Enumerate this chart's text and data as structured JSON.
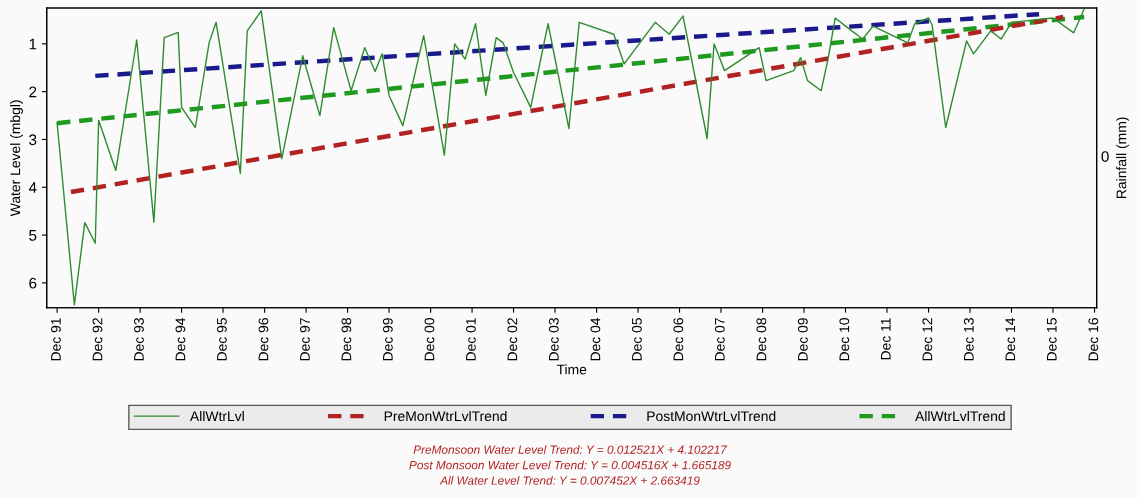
{
  "chart_data": {
    "type": "line",
    "xlabel": "Time",
    "ylabel": "Water Level (mbgl)",
    "y2label": "Rainfall (mm)",
    "xlim": [
      "1991-09-01",
      "2016-12-20"
    ],
    "ylim": [
      6.52,
      0.25
    ],
    "yticks": [
      1,
      2,
      3,
      4,
      5,
      6
    ],
    "xticks": [
      {
        "value": "1991-12-01",
        "label": "Dec 91"
      },
      {
        "value": "1992-12-01",
        "label": "Dec 92"
      },
      {
        "value": "1993-12-01",
        "label": "Dec 93"
      },
      {
        "value": "1994-12-01",
        "label": "Dec 94"
      },
      {
        "value": "1995-12-01",
        "label": "Dec 95"
      },
      {
        "value": "1996-12-01",
        "label": "Dec 96"
      },
      {
        "value": "1997-12-01",
        "label": "Dec 97"
      },
      {
        "value": "1998-12-01",
        "label": "Dec 98"
      },
      {
        "value": "1999-12-01",
        "label": "Dec 99"
      },
      {
        "value": "2000-12-01",
        "label": "Dec 00"
      },
      {
        "value": "2001-12-01",
        "label": "Dec 01"
      },
      {
        "value": "2002-12-01",
        "label": "Dec 02"
      },
      {
        "value": "2003-12-01",
        "label": "Dec 03"
      },
      {
        "value": "2004-12-01",
        "label": "Dec 04"
      },
      {
        "value": "2005-12-01",
        "label": "Dec 05"
      },
      {
        "value": "2006-12-01",
        "label": "Dec 06"
      },
      {
        "value": "2007-12-01",
        "label": "Dec 07"
      },
      {
        "value": "2008-12-01",
        "label": "Dec 08"
      },
      {
        "value": "2009-12-01",
        "label": "Dec 09"
      },
      {
        "value": "2010-12-01",
        "label": "Dec 10"
      },
      {
        "value": "2011-12-01",
        "label": "Dec 11"
      },
      {
        "value": "2012-12-01",
        "label": "Dec 12"
      },
      {
        "value": "2013-12-01",
        "label": "Dec 13"
      },
      {
        "value": "2014-12-01",
        "label": "Dec 14"
      },
      {
        "value": "2015-12-01",
        "label": "Dec 15"
      },
      {
        "value": "2016-12-01",
        "label": "Dec 16"
      }
    ],
    "grid": false,
    "legend": "bottom",
    "marker": "none",
    "series": [
      {
        "name": "AllWtrLvl",
        "color": "#2e8b2e",
        "line_style": "solid",
        "x": [
          "1991-12",
          "1992-05",
          "1992-08",
          "1992-11",
          "1992-12",
          "1993-05",
          "1993-11",
          "1994-04",
          "1994-07",
          "1994-11",
          "1994-12",
          "1995-04",
          "1995-08",
          "1995-10",
          "1996-05",
          "1996-07",
          "1996-11",
          "1997-05",
          "1997-11",
          "1998-04",
          "1998-08",
          "1999-01",
          "1999-05",
          "1999-08",
          "1999-10",
          "1999-12",
          "2000-04",
          "2000-10",
          "2001-04",
          "2001-07",
          "2001-10",
          "2002-01",
          "2002-04",
          "2002-07",
          "2002-09",
          "2002-12",
          "2003-05",
          "2003-10",
          "2004-04",
          "2004-07",
          "2005-05",
          "2005-08",
          "2006-05",
          "2006-09",
          "2007-01",
          "2007-08",
          "2007-10",
          "2008-01",
          "2008-11",
          "2009-01",
          "2009-09",
          "2009-11",
          "2010-01",
          "2010-05",
          "2010-07",
          "2010-09",
          "2010-12",
          "2011-05",
          "2011-08",
          "2012-06",
          "2012-08",
          "2012-12",
          "2013-01",
          "2013-05",
          "2013-11",
          "2014-01",
          "2014-06",
          "2014-09",
          "2014-12",
          "2015-12",
          "2016-06",
          "2016-09"
        ],
        "values": [
          2.65,
          6.46,
          4.74,
          5.17,
          2.6,
          3.65,
          0.92,
          4.73,
          0.87,
          0.76,
          2.33,
          2.75,
          0.97,
          0.55,
          3.71,
          0.73,
          0.31,
          3.4,
          1.25,
          2.5,
          0.66,
          1.98,
          1.08,
          1.58,
          1.21,
          2.08,
          2.71,
          0.83,
          3.33,
          1.0,
          1.32,
          0.58,
          2.08,
          0.87,
          0.98,
          1.6,
          2.33,
          0.58,
          2.77,
          0.55,
          0.8,
          1.42,
          0.55,
          0.8,
          0.42,
          2.98,
          1.0,
          1.56,
          1.08,
          1.77,
          1.56,
          1.29,
          1.77,
          1.98,
          1.31,
          0.46,
          0.63,
          0.9,
          0.63,
          0.98,
          0.58,
          0.46,
          0.6,
          2.75,
          0.94,
          1.21,
          0.73,
          0.9,
          0.55,
          0.46,
          0.77,
          0.27
        ]
      },
      {
        "name": "PreMonWtrLvlTrend",
        "color": "#b22222",
        "line_style": "dashed",
        "x": [
          "1992-04",
          "2016-03"
        ],
        "values": [
          4.1,
          0.44
        ]
      },
      {
        "name": "PostMonWtrLvlTrend",
        "color": "#1a1a8c",
        "line_style": "dashed",
        "x": [
          "1992-11",
          "2015-08"
        ],
        "values": [
          1.67,
          0.38
        ]
      },
      {
        "name": "AllWtrLvlTrend",
        "color": "#1f9a1f",
        "line_style": "dashed",
        "x": [
          "1991-12",
          "2016-09"
        ],
        "values": [
          2.66,
          0.44
        ]
      }
    ],
    "annotations": [
      "0",
      "PreMonsoon Water Level Trend: Y = 0.012521X + 4.102217",
      "Post Monsoon Water Level Trend: Y = 0.004516X + 1.665189",
      "All Water Level Trend: Y = 0.007452X + 2.663419"
    ]
  }
}
